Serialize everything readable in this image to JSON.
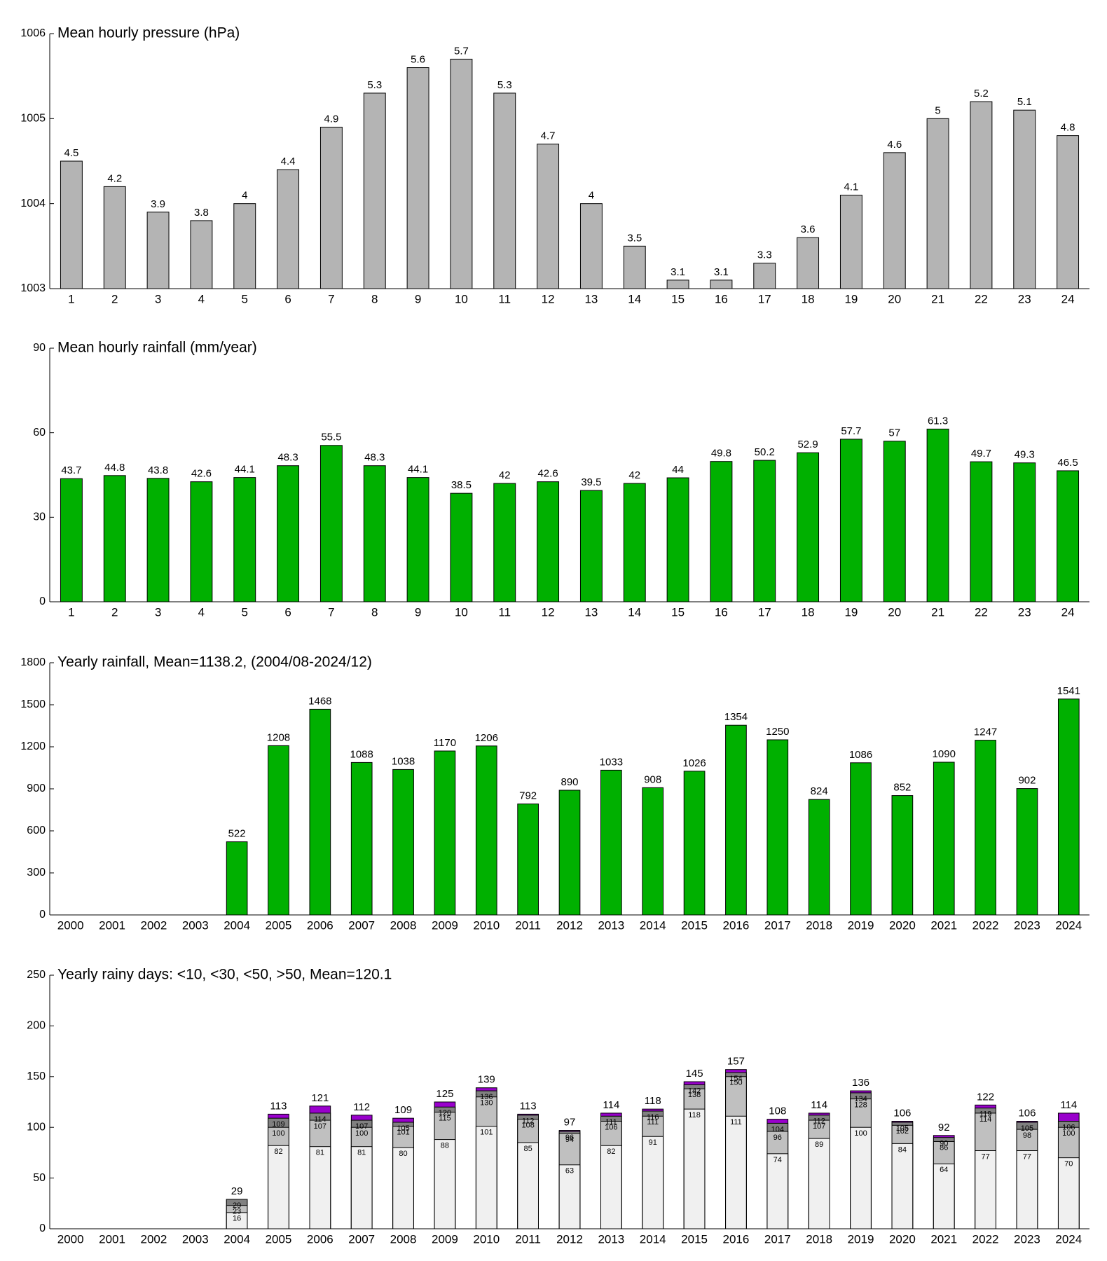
{
  "chart_data": [
    {
      "type": "bar",
      "title": "Mean hourly pressure (hPa)",
      "color": "#b4b4b4",
      "categories": [
        1,
        2,
        3,
        4,
        5,
        6,
        7,
        8,
        9,
        10,
        11,
        12,
        13,
        14,
        15,
        16,
        17,
        18,
        19,
        20,
        21,
        22,
        23,
        24
      ],
      "values": [
        1004.5,
        1004.2,
        1003.9,
        1003.8,
        1004,
        1004.4,
        1004.9,
        1005.3,
        1005.6,
        1005.7,
        1005.3,
        1004.7,
        1004,
        1003.5,
        1003.1,
        1003.1,
        1003.3,
        1003.6,
        1004.1,
        1004.6,
        1005,
        1005.2,
        1005.1,
        1004.8
      ],
      "value_labels": [
        "4.5",
        "4.2",
        "3.9",
        "3.8",
        "4",
        "4.4",
        "4.9",
        "5.3",
        "5.6",
        "5.7",
        "5.3",
        "4.7",
        "4",
        "3.5",
        "3.1",
        "3.1",
        "3.3",
        "3.6",
        "4.1",
        "4.6",
        "5",
        "5.2",
        "5.1",
        "4.8"
      ],
      "ylim": [
        1003,
        1006
      ],
      "yticks": [
        1003,
        1004,
        1005,
        1006
      ]
    },
    {
      "type": "bar",
      "title": "Mean hourly rainfall (mm/year)",
      "color": "#00b000",
      "categories": [
        1,
        2,
        3,
        4,
        5,
        6,
        7,
        8,
        9,
        10,
        11,
        12,
        13,
        14,
        15,
        16,
        17,
        18,
        19,
        20,
        21,
        22,
        23,
        24
      ],
      "values": [
        43.7,
        44.8,
        43.8,
        42.6,
        44.1,
        48.3,
        55.5,
        48.3,
        44.1,
        38.5,
        42,
        42.6,
        39.5,
        42,
        44,
        49.8,
        50.2,
        52.9,
        57.7,
        57,
        61.3,
        49.7,
        49.3,
        46.5
      ],
      "ylim": [
        0,
        90
      ],
      "yticks": [
        0,
        30,
        60,
        90
      ]
    },
    {
      "type": "bar",
      "title": "Yearly rainfall, Mean=1138.2, (2004/08-2024/12)",
      "color": "#00b000",
      "categories": [
        2000,
        2001,
        2002,
        2003,
        2004,
        2005,
        2006,
        2007,
        2008,
        2009,
        2010,
        2011,
        2012,
        2013,
        2014,
        2015,
        2016,
        2017,
        2018,
        2019,
        2020,
        2021,
        2022,
        2023,
        2024
      ],
      "values": [
        null,
        null,
        null,
        null,
        522,
        1208,
        1468,
        1088,
        1038,
        1170,
        1206,
        792,
        890,
        1033,
        908,
        1026,
        1354,
        1250,
        824,
        1086,
        852,
        1090,
        1247,
        902,
        1541
      ],
      "ylim": [
        0,
        1800
      ],
      "yticks": [
        0,
        300,
        600,
        900,
        1200,
        1500,
        1800
      ]
    },
    {
      "type": "overlapping_bar",
      "title": "Yearly rainy days: <10, <30, <50, >50, Mean=120.1",
      "categories": [
        2000,
        2001,
        2002,
        2003,
        2004,
        2005,
        2006,
        2007,
        2008,
        2009,
        2010,
        2011,
        2012,
        2013,
        2014,
        2015,
        2016,
        2017,
        2018,
        2019,
        2020,
        2021,
        2022,
        2023,
        2024
      ],
      "series": [
        {
          "color": "#f0f0f0",
          "values": [
            null,
            null,
            null,
            null,
            16,
            82,
            81,
            81,
            80,
            88,
            101,
            85,
            63,
            82,
            91,
            118,
            111,
            74,
            89,
            100,
            84,
            64,
            77,
            77,
            70
          ]
        },
        {
          "color": "#c0c0c0",
          "values": [
            null,
            null,
            null,
            null,
            23,
            100,
            107,
            100,
            101,
            115,
            130,
            108,
            94,
            106,
            111,
            138,
            150,
            96,
            107,
            128,
            102,
            86,
            114,
            98,
            100
          ]
        },
        {
          "color": "#808080",
          "values": [
            null,
            null,
            null,
            null,
            29,
            109,
            114,
            107,
            105,
            120,
            136,
            112,
            96,
            111,
            116,
            142,
            154,
            104,
            112,
            134,
            105,
            90,
            119,
            105,
            106
          ]
        },
        {
          "color": "#9900cc",
          "values": [
            null,
            null,
            null,
            null,
            29,
            113,
            121,
            112,
            109,
            125,
            139,
            113,
            97,
            114,
            118,
            145,
            157,
            108,
            114,
            136,
            106,
            92,
            122,
            106,
            114
          ]
        }
      ],
      "ylim": [
        0,
        250
      ],
      "yticks": [
        0,
        50,
        100,
        150,
        200,
        250
      ]
    }
  ]
}
